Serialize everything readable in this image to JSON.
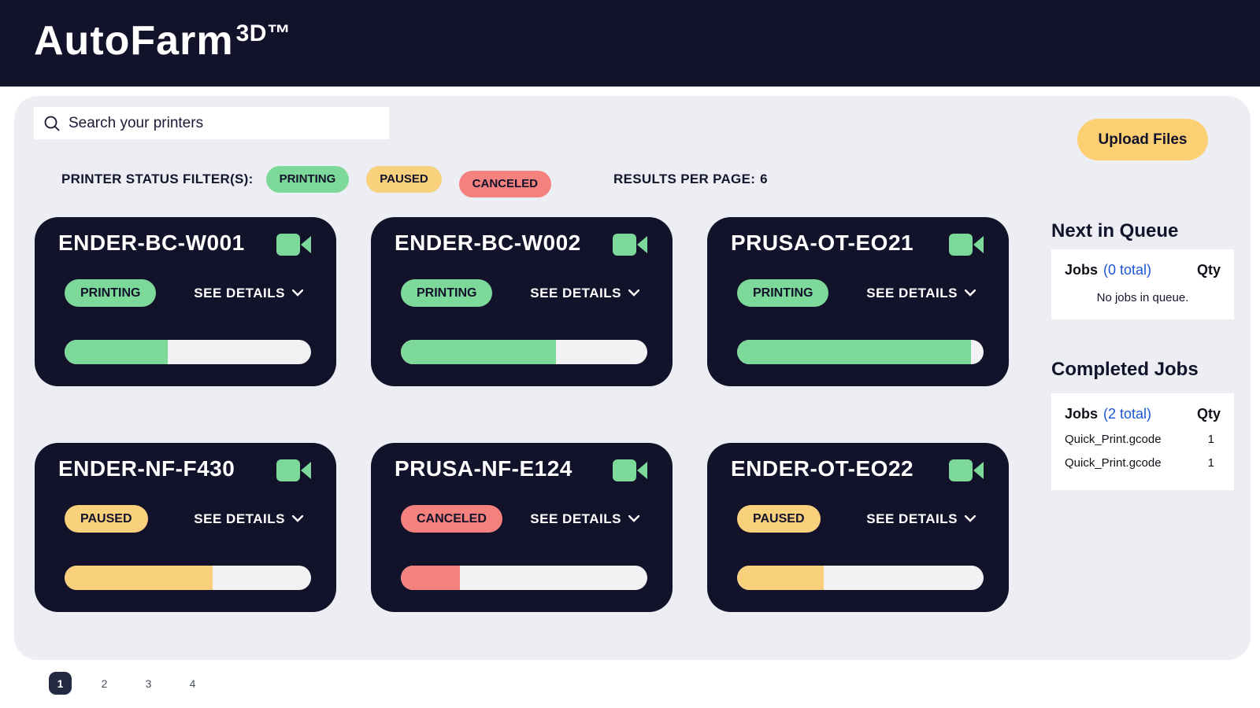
{
  "app": {
    "title": "AutoFarm",
    "title_sup": "3D™"
  },
  "toolbar": {
    "search_placeholder": "Search your printers",
    "upload_label": "Upload Files"
  },
  "filters": {
    "label": "PRINTER STATUS FILTER(S):",
    "options": [
      {
        "label": "PRINTING",
        "color": "#7cd999"
      },
      {
        "label": "PAUSED",
        "color": "#f9d07b"
      },
      {
        "label": "CANCELED",
        "color": "#f5817e"
      }
    ],
    "results_per_page_label": "RESULTS PER PAGE:",
    "results_per_page_value": "6"
  },
  "printers": [
    {
      "name": "ENDER-BC-W001",
      "status": "PRINTING",
      "status_color": "#7cd999",
      "progress": 42,
      "details_label": "SEE DETAILS"
    },
    {
      "name": "ENDER-BC-W002",
      "status": "PRINTING",
      "status_color": "#7cd999",
      "progress": 63,
      "details_label": "SEE DETAILS"
    },
    {
      "name": "PRUSA-OT-EO21",
      "status": "PRINTING",
      "status_color": "#7cd999",
      "progress": 95,
      "details_label": "SEE DETAILS"
    },
    {
      "name": "ENDER-NF-F430",
      "status": "PAUSED",
      "status_color": "#f9d07b",
      "progress": 60,
      "details_label": "SEE DETAILS"
    },
    {
      "name": "PRUSA-NF-E124",
      "status": "CANCELED",
      "status_color": "#f5817e",
      "progress": 24,
      "details_label": "SEE DETAILS"
    },
    {
      "name": "ENDER-OT-EO22",
      "status": "PAUSED",
      "status_color": "#f9d07b",
      "progress": 35,
      "details_label": "SEE DETAILS"
    }
  ],
  "queue": {
    "title": "Next in Queue",
    "jobs_label": "Jobs",
    "total_label": "(0 total)",
    "qty_label": "Qty",
    "empty_text": "No jobs in queue."
  },
  "completed": {
    "title": "Completed Jobs",
    "jobs_label": "Jobs",
    "total_label": "(2 total)",
    "qty_label": "Qty",
    "rows": [
      {
        "file": "Quick_Print.gcode",
        "qty": "1"
      },
      {
        "file": "Quick_Print.gcode",
        "qty": "1"
      }
    ]
  },
  "pagination": {
    "pages": [
      "1",
      "2",
      "3",
      "4"
    ],
    "active": "1"
  },
  "colors": {
    "navy": "#12122b",
    "panel_gray": "#eceef3",
    "green": "#7cd999",
    "yellow": "#f9d07b",
    "red": "#f5817e",
    "upload_yellow": "#fccf73",
    "link_blue": "#1b55d8"
  }
}
